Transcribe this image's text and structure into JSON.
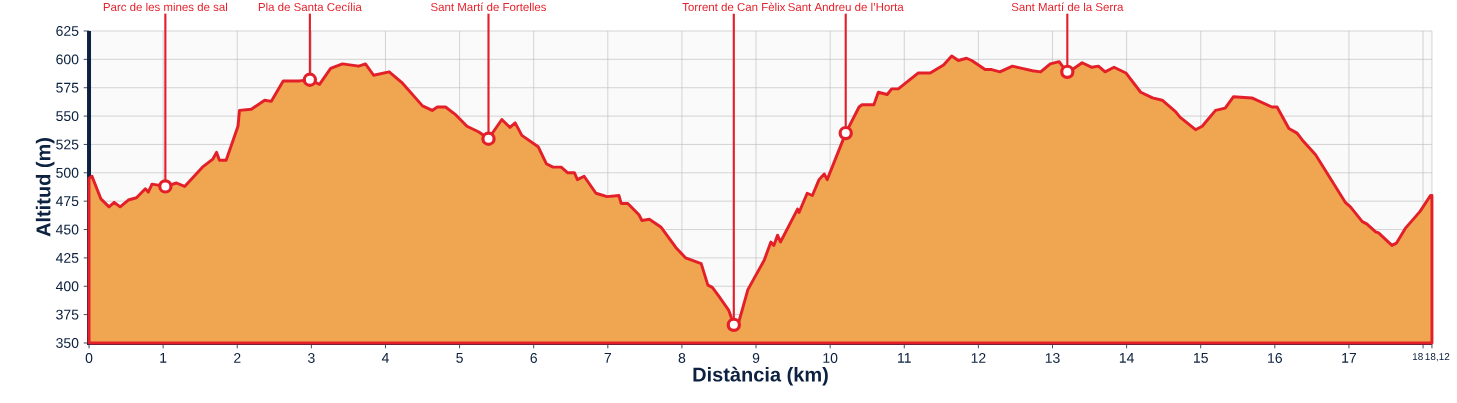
{
  "chart_data": {
    "type": "area",
    "xlabel": "Distància (km)",
    "ylabel": "Altitud (m)",
    "x": [
      0,
      0.04,
      0.16,
      0.27,
      0.34,
      0.42,
      0.53,
      0.64,
      0.76,
      0.8,
      0.85,
      1.03,
      1.18,
      1.29,
      1.53,
      1.67,
      1.72,
      1.76,
      1.85,
      2.01,
      2.03,
      2.19,
      2.37,
      2.46,
      2.62,
      2.84,
      2.98,
      3.11,
      3.26,
      3.42,
      3.64,
      3.73,
      3.84,
      4.05,
      4.23,
      4.5,
      4.63,
      4.7,
      4.81,
      4.95,
      5.1,
      5.26,
      5.39,
      5.57,
      5.68,
      5.75,
      5.84,
      6.06,
      6.17,
      6.26,
      6.37,
      6.46,
      6.55,
      6.59,
      6.68,
      6.84,
      6.99,
      7.15,
      7.18,
      7.27,
      7.42,
      7.46,
      7.56,
      7.72,
      7.92,
      8.05,
      8.26,
      8.35,
      8.41,
      8.5,
      8.63,
      8.7,
      8.77,
      8.89,
      9,
      9.11,
      9.2,
      9.24,
      9.29,
      9.33,
      9.56,
      9.58,
      9.69,
      9.76,
      9.85,
      9.92,
      9.96,
      10.21,
      10.39,
      10.43,
      10.59,
      10.65,
      10.77,
      10.83,
      10.92,
      11.19,
      11.35,
      11.53,
      11.64,
      11.73,
      11.84,
      11.91,
      12.09,
      12.18,
      12.29,
      12.46,
      12.59,
      12.73,
      12.84,
      12.97,
      13.09,
      13.2,
      13.4,
      13.53,
      13.62,
      13.71,
      13.83,
      13.99,
      14.19,
      14.35,
      14.48,
      14.66,
      14.72,
      14.93,
      15.02,
      15.2,
      15.33,
      15.44,
      15.69,
      15.96,
      16.03,
      16.19,
      16.3,
      16.37,
      16.55,
      16.95,
      17.02,
      17.18,
      17.24,
      17.36,
      17.4,
      17.58,
      17.64,
      17.76,
      17.96,
      18.1,
      18.12
    ],
    "series": [
      {
        "color": "#e3202a",
        "values": [
          495,
          497,
          477,
          470,
          474,
          470,
          476,
          478,
          486,
          483,
          490,
          488,
          491,
          488,
          505,
          512,
          518,
          511,
          511,
          541,
          555,
          556,
          564,
          563,
          581,
          581,
          582,
          578,
          592,
          596,
          594,
          596,
          586,
          589,
          579,
          559,
          555,
          558,
          558,
          551,
          541,
          536,
          530,
          547,
          540,
          544,
          533,
          523,
          508,
          505,
          505,
          500,
          500,
          494,
          497,
          482,
          479,
          480,
          473,
          473,
          463,
          458,
          459,
          452,
          434,
          425,
          420,
          401,
          399,
          391,
          379,
          366,
          369,
          397,
          410,
          423,
          439,
          436,
          445,
          439,
          468,
          465,
          482,
          480,
          494,
          499,
          494,
          535,
          558,
          560,
          560,
          571,
          569,
          574,
          574,
          588,
          588,
          595,
          603,
          599,
          601,
          599,
          591,
          591,
          589,
          594,
          592,
          590,
          589,
          596,
          598,
          588,
          597,
          593,
          594,
          589,
          593,
          588,
          571,
          566,
          564,
          554,
          549,
          538,
          541,
          555,
          557,
          567,
          566,
          558,
          558,
          539,
          535,
          529,
          516,
          474,
          470,
          457,
          455,
          448,
          447,
          436,
          438,
          451,
          466,
          480,
          480
        ]
      }
    ],
    "annotations": [
      {
        "text": "Parc de les mines de sal",
        "x": 1.03,
        "y": 488
      },
      {
        "text": "Pla de Santa Cecília",
        "x": 2.98,
        "y": 582
      },
      {
        "text": "Sant Martí de Fortelles",
        "x": 5.39,
        "y": 530
      },
      {
        "text": "Torrent de Can Fèlix",
        "x": 8.7,
        "y": 366
      },
      {
        "text": "Sant Andreu de l’Horta",
        "x": 10.21,
        "y": 535
      },
      {
        "text": "Sant Martí de la Serra",
        "x": 13.2,
        "y": 589
      }
    ],
    "xlim": [
      0,
      18.12
    ],
    "ylim": [
      350,
      625
    ],
    "xticks": [
      0,
      1,
      2,
      3,
      4,
      5,
      6,
      7,
      8,
      9,
      10,
      11,
      12,
      13,
      14,
      15,
      16,
      17,
      18,
      {
        "value": 18.12,
        "label": "18,12"
      }
    ],
    "yticks": [
      350,
      375,
      400,
      425,
      450,
      475,
      500,
      525,
      550,
      575,
      600,
      625
    ],
    "grid": true
  }
}
